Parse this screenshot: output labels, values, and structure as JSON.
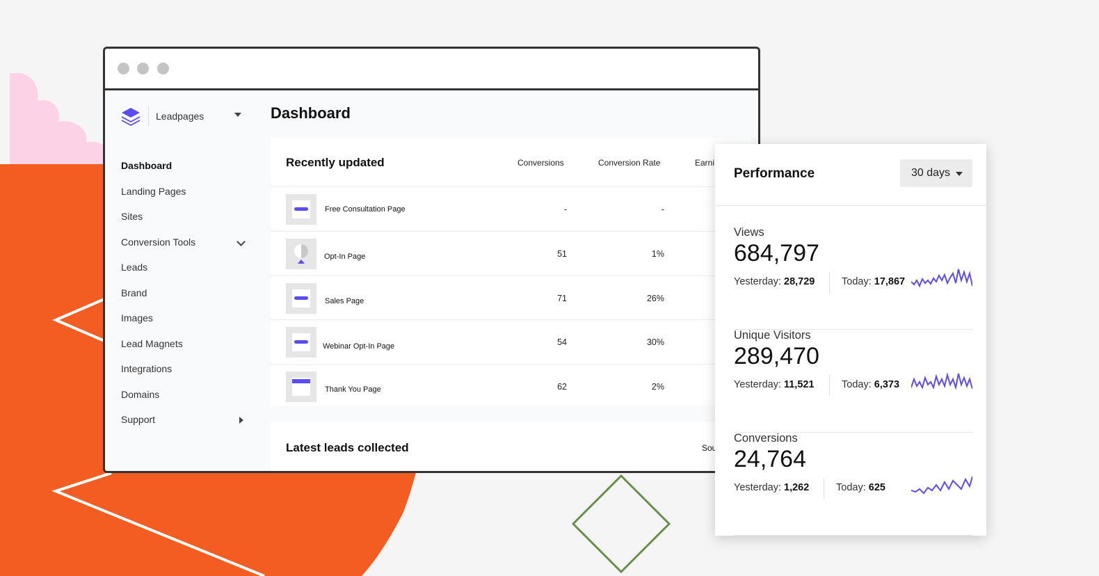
{
  "colors": {
    "accent": "#5b4cf5",
    "orange": "#f45d22",
    "pink": "#fcd2e6",
    "green": "#6a8f4a"
  },
  "window": {
    "dots": [
      "close",
      "minimize",
      "maximize"
    ]
  },
  "brand": {
    "name": "Leadpages",
    "icon": "layers-logo-icon"
  },
  "sidebar": {
    "items": [
      {
        "label": "Dashboard",
        "active": true
      },
      {
        "label": "Landing Pages"
      },
      {
        "label": "Sites"
      },
      {
        "label": "Conversion Tools",
        "icon": "chevron-down-icon"
      },
      {
        "label": "Leads"
      },
      {
        "label": "Brand"
      },
      {
        "label": "Images"
      },
      {
        "label": "Lead Magnets"
      },
      {
        "label": "Integrations"
      },
      {
        "label": "Domains"
      },
      {
        "label": "Support",
        "icon": "caret-right-icon"
      }
    ]
  },
  "page": {
    "title": "Dashboard"
  },
  "recent": {
    "title": "Recently updated",
    "columns": [
      "Conversions",
      "Conversion Rate",
      "Earni"
    ],
    "rows": [
      {
        "name": "Free Consultation Page",
        "conversions": "-",
        "rate": "-"
      },
      {
        "name": "Opt-In Page",
        "conversions": "51",
        "rate": "1%"
      },
      {
        "name": "Sales Page",
        "conversions": "71",
        "rate": "26%"
      },
      {
        "name": "Webinar Opt-In Page",
        "conversions": "54",
        "rate": "30%"
      },
      {
        "name": "Thank You Page",
        "conversions": "62",
        "rate": "2%"
      }
    ]
  },
  "leads": {
    "title": "Latest leads collected",
    "column": "Sou"
  },
  "performance": {
    "title": "Performance",
    "range": "30 days",
    "metrics": [
      {
        "label": "Views",
        "value": "684,797",
        "yesterday_label": "Yesterday:",
        "yesterday": "28,729",
        "today_label": "Today:",
        "today": "17,867"
      },
      {
        "label": "Unique Visitors",
        "value": "289,470",
        "yesterday_label": "Yesterday:",
        "yesterday": "11,521",
        "today_label": "Today:",
        "today": "6,373"
      },
      {
        "label": "Conversions",
        "value": "24,764",
        "yesterday_label": "Yesterday:",
        "yesterday": "1,262",
        "today_label": "Today:",
        "today": "625"
      }
    ]
  }
}
